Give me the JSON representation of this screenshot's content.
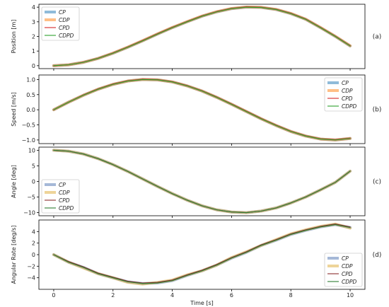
{
  "chart_data": [
    {
      "type": "line",
      "tag": "(a)",
      "ylabel": "Position [m]",
      "xlabel": "",
      "xlim": [
        -0.5,
        10.5
      ],
      "ylim": [
        -0.2,
        4.2
      ],
      "yticks": [
        0,
        1,
        2,
        3,
        4
      ],
      "ytick_labels": [
        "0",
        "1",
        "2",
        "3",
        "4"
      ],
      "xtick_labels_shown": false,
      "legend_loc": "top-left",
      "series": [
        {
          "name": "CP",
          "color": "#1f77b4",
          "width": 4.0,
          "opacity": 0.5,
          "x": [
            0,
            0.5,
            1,
            1.5,
            2,
            2.5,
            3,
            3.5,
            4,
            4.5,
            5,
            5.5,
            6,
            6.5,
            7,
            7.5,
            8,
            8.5,
            9,
            9.5,
            10
          ],
          "values": [
            0.0,
            0.06,
            0.23,
            0.5,
            0.85,
            1.26,
            1.7,
            2.16,
            2.6,
            3.0,
            3.38,
            3.68,
            3.9,
            4.0,
            3.98,
            3.84,
            3.56,
            3.17,
            2.6,
            2.0,
            1.35
          ]
        },
        {
          "name": "CDP",
          "color": "#ff7f0e",
          "width": 4.0,
          "opacity": 0.5,
          "x": [
            0,
            0.5,
            1,
            1.5,
            2,
            2.5,
            3,
            3.5,
            4,
            4.5,
            5,
            5.5,
            6,
            6.5,
            7,
            7.5,
            8,
            8.5,
            9,
            9.5,
            10
          ],
          "values": [
            0.0,
            0.06,
            0.23,
            0.5,
            0.86,
            1.27,
            1.71,
            2.17,
            2.61,
            3.01,
            3.39,
            3.69,
            3.91,
            4.01,
            3.99,
            3.85,
            3.57,
            3.18,
            2.61,
            2.01,
            1.36
          ]
        },
        {
          "name": "CPD",
          "color": "#d62728",
          "width": 1.1,
          "opacity": 1.0,
          "x": [
            0,
            0.5,
            1,
            1.5,
            2,
            2.5,
            3,
            3.5,
            4,
            4.5,
            5,
            5.5,
            6,
            6.5,
            7,
            7.5,
            8,
            8.5,
            9,
            9.5,
            10
          ],
          "values": [
            0.0,
            0.06,
            0.24,
            0.51,
            0.87,
            1.28,
            1.72,
            2.18,
            2.62,
            3.02,
            3.4,
            3.7,
            3.92,
            4.02,
            4.0,
            3.86,
            3.58,
            3.19,
            2.62,
            2.02,
            1.37
          ]
        },
        {
          "name": "CDPD",
          "color": "#2ca02c",
          "width": 1.1,
          "opacity": 1.0,
          "x": [
            0,
            0.5,
            1,
            1.5,
            2,
            2.5,
            3,
            3.5,
            4,
            4.5,
            5,
            5.5,
            6,
            6.5,
            7,
            7.5,
            8,
            8.5,
            9,
            9.5,
            10
          ],
          "values": [
            0.0,
            0.06,
            0.23,
            0.5,
            0.85,
            1.26,
            1.7,
            2.16,
            2.6,
            3.0,
            3.38,
            3.68,
            3.9,
            4.0,
            3.98,
            3.84,
            3.56,
            3.17,
            2.6,
            2.0,
            1.35
          ]
        }
      ]
    },
    {
      "type": "line",
      "tag": "(b)",
      "ylabel": "Speed [m/s]",
      "xlabel": "",
      "xlim": [
        -0.5,
        10.5
      ],
      "ylim": [
        -1.12,
        1.15
      ],
      "yticks": [
        -1.0,
        -0.5,
        0.0,
        0.5,
        1.0
      ],
      "ytick_labels": [
        "−1.0",
        "−0.5",
        "0.0",
        "0.5",
        "1.0"
      ],
      "xtick_labels_shown": false,
      "legend_loc": "top-right",
      "series": [
        {
          "name": "CP",
          "color": "#1f77b4",
          "width": 4.0,
          "opacity": 0.5,
          "x": [
            0,
            0.5,
            1,
            1.5,
            2,
            2.5,
            3,
            3.5,
            4,
            4.5,
            5,
            5.5,
            6,
            6.5,
            7,
            7.5,
            8,
            8.5,
            9,
            9.5,
            10
          ],
          "values": [
            0.0,
            0.25,
            0.48,
            0.68,
            0.84,
            0.95,
            1.0,
            0.99,
            0.92,
            0.79,
            0.62,
            0.41,
            0.18,
            -0.06,
            -0.3,
            -0.52,
            -0.72,
            -0.87,
            -0.97,
            -1.0,
            -0.95
          ]
        },
        {
          "name": "CDP",
          "color": "#ff7f0e",
          "width": 4.0,
          "opacity": 0.5,
          "x": [
            0,
            0.5,
            1,
            1.5,
            2,
            2.5,
            3,
            3.5,
            4,
            4.5,
            5,
            5.5,
            6,
            6.5,
            7,
            7.5,
            8,
            8.5,
            9,
            9.5,
            10
          ],
          "values": [
            0.0,
            0.25,
            0.48,
            0.68,
            0.84,
            0.95,
            1.0,
            0.99,
            0.92,
            0.79,
            0.62,
            0.41,
            0.18,
            -0.06,
            -0.3,
            -0.52,
            -0.72,
            -0.87,
            -0.97,
            -1.0,
            -0.95
          ]
        },
        {
          "name": "CPD",
          "color": "#d62728",
          "width": 1.1,
          "opacity": 1.0,
          "x": [
            0,
            0.5,
            1,
            1.5,
            2,
            2.5,
            3,
            3.5,
            4,
            4.5,
            5,
            5.5,
            6,
            6.5,
            7,
            7.5,
            8,
            8.5,
            9,
            9.5,
            10
          ],
          "values": [
            0.0,
            0.25,
            0.49,
            0.69,
            0.85,
            0.96,
            1.01,
            1.0,
            0.93,
            0.8,
            0.63,
            0.42,
            0.19,
            -0.05,
            -0.29,
            -0.51,
            -0.71,
            -0.86,
            -0.96,
            -0.99,
            -0.94
          ]
        },
        {
          "name": "CDPD",
          "color": "#2ca02c",
          "width": 1.1,
          "opacity": 1.0,
          "x": [
            0,
            0.5,
            1,
            1.5,
            2,
            2.5,
            3,
            3.5,
            4,
            4.5,
            5,
            5.5,
            6,
            6.5,
            7,
            7.5,
            8,
            8.5,
            9,
            9.5,
            10
          ],
          "values": [
            0.0,
            0.25,
            0.48,
            0.68,
            0.84,
            0.95,
            1.0,
            0.99,
            0.92,
            0.79,
            0.62,
            0.41,
            0.18,
            -0.06,
            -0.3,
            -0.52,
            -0.72,
            -0.87,
            -0.97,
            -1.0,
            -0.95
          ]
        }
      ]
    },
    {
      "type": "line",
      "tag": "(c)",
      "ylabel": "Angle [deg]",
      "xlabel": "",
      "xlim": [
        -0.5,
        10.5
      ],
      "ylim": [
        -11,
        11
      ],
      "yticks": [
        -10,
        -5,
        0,
        5,
        10
      ],
      "ytick_labels": [
        "−10",
        "−5",
        "0",
        "5",
        "10"
      ],
      "xtick_labels_shown": false,
      "legend_loc": "bottom-left",
      "series": [
        {
          "name": "CP",
          "color": "#4c72b0",
          "width": 4.0,
          "opacity": 0.5,
          "x": [
            0,
            0.5,
            1,
            1.5,
            2,
            2.5,
            3,
            3.5,
            4,
            4.5,
            5,
            5.5,
            6,
            6.5,
            7,
            7.5,
            8,
            8.5,
            9,
            9.5,
            10
          ],
          "values": [
            10.0,
            9.7,
            8.8,
            7.3,
            5.4,
            3.2,
            0.8,
            -1.6,
            -3.9,
            -6.0,
            -7.8,
            -9.1,
            -9.8,
            -10.0,
            -9.5,
            -8.5,
            -6.9,
            -5.0,
            -2.7,
            -0.3,
            3.3
          ]
        },
        {
          "name": "CDP",
          "color": "#ddaa33",
          "width": 4.0,
          "opacity": 0.5,
          "x": [
            0,
            0.5,
            1,
            1.5,
            2,
            2.5,
            3,
            3.5,
            4,
            4.5,
            5,
            5.5,
            6,
            6.5,
            7,
            7.5,
            8,
            8.5,
            9,
            9.5,
            10
          ],
          "values": [
            10.0,
            9.7,
            8.8,
            7.3,
            5.4,
            3.2,
            0.8,
            -1.6,
            -3.9,
            -6.0,
            -7.8,
            -9.1,
            -9.8,
            -10.0,
            -9.5,
            -8.5,
            -6.9,
            -5.0,
            -2.7,
            -0.3,
            3.3
          ]
        },
        {
          "name": "CPD",
          "color": "#8c2d2d",
          "width": 1.1,
          "opacity": 1.0,
          "x": [
            0,
            0.5,
            1,
            1.5,
            2,
            2.5,
            3,
            3.5,
            4,
            4.5,
            5,
            5.5,
            6,
            6.5,
            7,
            7.5,
            8,
            8.5,
            9,
            9.5,
            10
          ],
          "values": [
            10.0,
            9.7,
            8.8,
            7.3,
            5.4,
            3.2,
            0.8,
            -1.6,
            -3.9,
            -6.0,
            -7.8,
            -9.1,
            -9.8,
            -10.0,
            -9.5,
            -8.5,
            -6.9,
            -5.0,
            -2.7,
            -0.3,
            3.3
          ]
        },
        {
          "name": "CDPD",
          "color": "#2e7d32",
          "width": 1.1,
          "opacity": 1.0,
          "x": [
            0,
            0.5,
            1,
            1.5,
            2,
            2.5,
            3,
            3.5,
            4,
            4.5,
            5,
            5.5,
            6,
            6.5,
            7,
            7.5,
            8,
            8.5,
            9,
            9.5,
            10
          ],
          "values": [
            10.0,
            9.7,
            8.8,
            7.3,
            5.4,
            3.2,
            0.8,
            -1.6,
            -3.9,
            -6.0,
            -7.8,
            -9.1,
            -9.8,
            -10.0,
            -9.5,
            -8.5,
            -6.9,
            -5.0,
            -2.7,
            -0.3,
            3.3
          ]
        }
      ]
    },
    {
      "type": "line",
      "tag": "(d)",
      "ylabel": "Angular Rate [deg/s]",
      "xlabel": "Time [s]",
      "xlim": [
        -0.5,
        10.5
      ],
      "ylim": [
        -6,
        6
      ],
      "yticks": [
        -4,
        -2,
        0,
        2,
        4
      ],
      "ytick_labels": [
        "−4",
        "−2",
        "0",
        "2",
        "4"
      ],
      "xticks": [
        0,
        2,
        4,
        6,
        8,
        10
      ],
      "xtick_labels": [
        "0",
        "2",
        "4",
        "6",
        "8",
        "10"
      ],
      "xtick_labels_shown": true,
      "legend_loc": "bottom-right",
      "series": [
        {
          "name": "CP",
          "color": "#4c72b0",
          "width": 4.0,
          "opacity": 0.5,
          "x": [
            0,
            0.5,
            1,
            1.5,
            2,
            2.5,
            3,
            3.5,
            4,
            4.5,
            5,
            5.5,
            6,
            6.5,
            7,
            7.5,
            8,
            8.5,
            9,
            9.5,
            10
          ],
          "values": [
            0.0,
            -1.3,
            -2.2,
            -3.3,
            -4.0,
            -4.7,
            -5.0,
            -4.9,
            -4.5,
            -3.6,
            -2.8,
            -1.8,
            -0.6,
            0.4,
            1.6,
            2.5,
            3.5,
            4.2,
            4.8,
            5.2,
            4.7
          ]
        },
        {
          "name": "CDP",
          "color": "#ddaa33",
          "width": 4.0,
          "opacity": 0.5,
          "x": [
            0,
            0.5,
            1,
            1.5,
            2,
            2.5,
            3,
            3.5,
            4,
            4.5,
            5,
            5.5,
            6,
            6.5,
            7,
            7.5,
            8,
            8.5,
            9,
            9.5,
            10
          ],
          "values": [
            0.0,
            -1.3,
            -2.3,
            -3.3,
            -4.0,
            -4.8,
            -5.1,
            -4.8,
            -4.4,
            -3.5,
            -2.8,
            -1.8,
            -0.5,
            0.5,
            1.6,
            2.6,
            3.6,
            4.3,
            4.9,
            5.3,
            4.6
          ]
        },
        {
          "name": "CPD",
          "color": "#8c2d2d",
          "width": 1.1,
          "opacity": 1.0,
          "x": [
            0,
            0.5,
            1,
            1.5,
            2,
            2.5,
            3,
            3.5,
            4,
            4.5,
            5,
            5.5,
            6,
            6.5,
            7,
            7.5,
            8,
            8.5,
            9,
            9.5,
            10
          ],
          "values": [
            0.0,
            -1.2,
            -2.1,
            -3.2,
            -3.9,
            -4.6,
            -4.9,
            -4.8,
            -4.4,
            -3.5,
            -2.7,
            -1.7,
            -0.5,
            0.5,
            1.7,
            2.6,
            3.6,
            4.3,
            4.9,
            5.3,
            4.8
          ]
        },
        {
          "name": "CDPD",
          "color": "#2e7d32",
          "width": 1.1,
          "opacity": 1.0,
          "x": [
            0,
            0.5,
            1,
            1.5,
            2,
            2.5,
            3,
            3.5,
            4,
            4.5,
            5,
            5.5,
            6,
            6.5,
            7,
            7.5,
            8,
            8.5,
            9,
            9.5,
            10
          ],
          "values": [
            0.0,
            -1.3,
            -2.2,
            -3.3,
            -4.0,
            -4.7,
            -5.0,
            -4.9,
            -4.5,
            -3.6,
            -2.8,
            -1.8,
            -0.6,
            0.4,
            1.6,
            2.5,
            3.5,
            4.2,
            4.8,
            5.2,
            4.7
          ]
        }
      ]
    }
  ]
}
